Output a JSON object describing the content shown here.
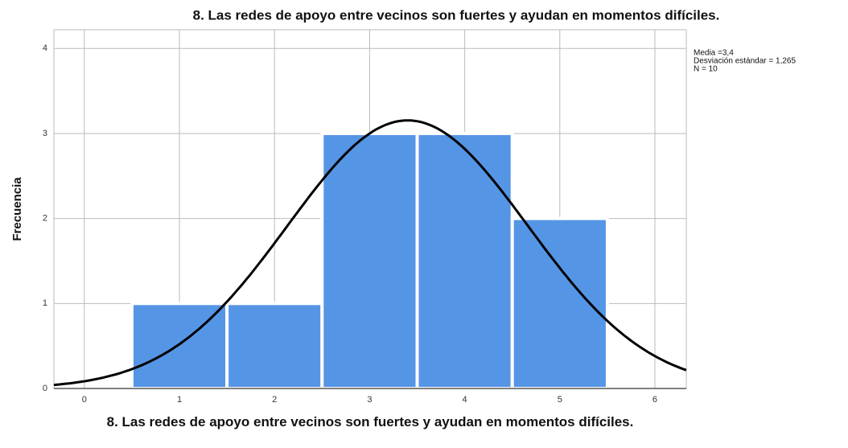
{
  "chart_data": {
    "type": "histogram",
    "title": "8. Las redes de apoyo entre vecinos son fuertes y ayudan en momentos difíciles.",
    "x_label": "8. Las redes de apoyo entre vecinos son fuertes y ayudan en momentos difíciles.",
    "y_label": "Frecuencia",
    "bins": [
      0.5,
      1.5,
      2.5,
      3.5,
      4.5,
      5.5
    ],
    "values": [
      1,
      1,
      3,
      3,
      2
    ],
    "color": "#5595e5",
    "xlim": [
      -0.32,
      6.33
    ],
    "xticks": [
      0,
      1,
      2,
      3,
      4,
      5,
      6
    ],
    "ylim": [
      0,
      4.22
    ],
    "yticks": [
      0,
      1,
      2,
      3,
      4
    ],
    "grid": true,
    "stats": [
      {
        "value": 3.4,
        "label": "Media =3,4"
      },
      {
        "value": 1.265,
        "label": "Desviación estándar = 1,265"
      },
      {
        "value": 10,
        "label": "N = 10"
      }
    ]
  }
}
